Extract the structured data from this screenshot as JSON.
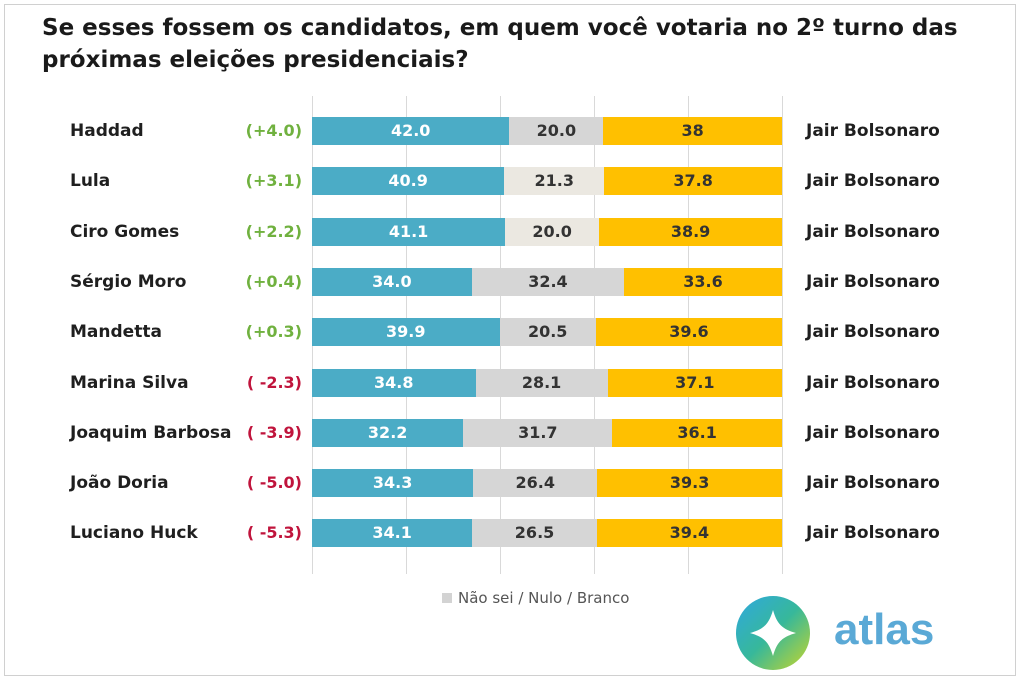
{
  "title": "Se esses fossem os candidatos, em quem você votaria no 2º turno das próximas eleições presidenciais?",
  "legend_label": "Não sei / Nulo / Branco",
  "logo_text": "atlas",
  "colors": {
    "candidate": "#4bacc6",
    "undecided": "#d6d6d6",
    "undecided_alt": "#ebe8e1",
    "bolsonaro": "#ffc000",
    "positive": "#70b13f",
    "negative": "#c0143c",
    "logo": "#5aa9d6"
  },
  "chart_data": {
    "type": "bar",
    "stacked": true,
    "orientation": "horizontal",
    "xlim": [
      0,
      100
    ],
    "categories": [
      "Haddad",
      "Lula",
      "Ciro Gomes",
      "Sérgio Moro",
      "Mandetta",
      "Marina Silva",
      "Joaquim Barbosa",
      "João Doria",
      "Luciano Huck"
    ],
    "opponent_labels": [
      "Jair Bolsonaro",
      "Jair Bolsonaro",
      "Jair Bolsonaro",
      "Jair Bolsonaro",
      "Jair Bolsonaro",
      "Jair Bolsonaro",
      "Jair Bolsonaro",
      "Jair Bolsonaro",
      "Jair Bolsonaro"
    ],
    "differences": [
      "(+4.0)",
      "(+3.1)",
      "(+2.2)",
      "(+0.4)",
      "(+0.3)",
      "( -2.3)",
      "( -3.9)",
      "( -5.0)",
      "( -5.3)"
    ],
    "series": [
      {
        "values": [
          42.0,
          40.9,
          41.1,
          34.0,
          39.9,
          34.8,
          32.2,
          34.3,
          34.1
        ],
        "labels": [
          "42.0",
          "40.9",
          "41.1",
          "34.0",
          "39.9",
          "34.8",
          "32.2",
          "34.3",
          "34.1"
        ]
      },
      {
        "name": "Não sei / Nulo / Branco",
        "values": [
          20.0,
          21.3,
          20.0,
          32.4,
          20.5,
          28.1,
          31.7,
          26.4,
          26.5
        ],
        "labels": [
          "20.0",
          "21.3",
          "20.0",
          "32.4",
          "20.5",
          "28.1",
          "31.7",
          "26.4",
          "26.5"
        ]
      },
      {
        "values": [
          38,
          37.8,
          38.9,
          33.6,
          39.6,
          37.1,
          36.1,
          39.3,
          39.4
        ],
        "labels": [
          "38",
          "37.8",
          "38.9",
          "33.6",
          "39.6",
          "37.1",
          "36.1",
          "39.3",
          "39.4"
        ]
      }
    ]
  }
}
